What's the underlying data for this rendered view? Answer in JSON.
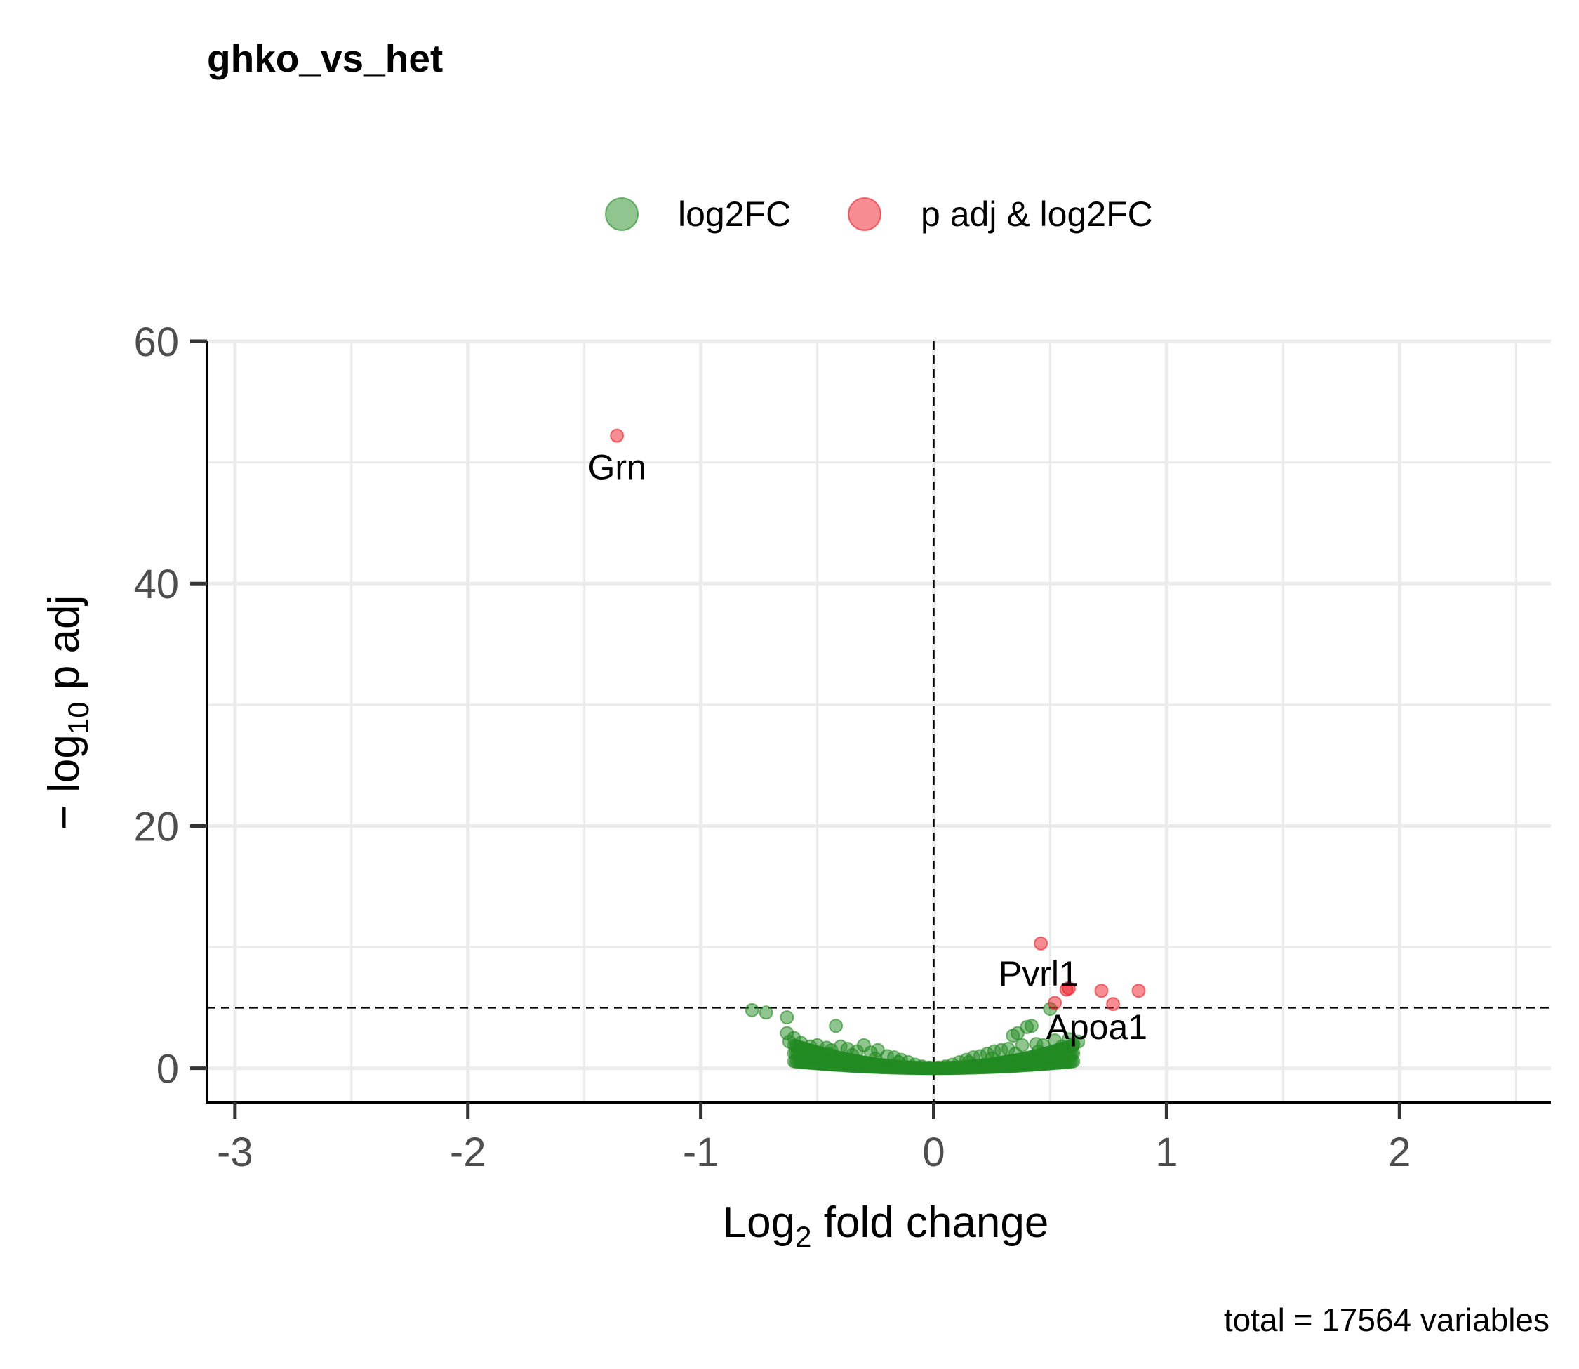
{
  "chart_data": {
    "type": "scatter",
    "title": "ghko_vs_het",
    "xlabel": {
      "prefix": "Log",
      "sub": "2",
      "suffix": " fold change"
    },
    "ylabel": {
      "prefix": "− log",
      "sub": "10",
      "suffix": " p adj"
    },
    "caption": "total = 17564 variables",
    "xlim": [
      -3.12,
      2.65
    ],
    "ylim": [
      -2.8,
      60
    ],
    "x_ticks": [
      -3,
      -2,
      -1,
      0,
      1,
      2
    ],
    "x_tick_labels": [
      "-3",
      "-2",
      "-1",
      "0",
      "1",
      "2"
    ],
    "y_ticks": [
      0,
      20,
      40,
      60
    ],
    "y_tick_labels": [
      "0",
      "20",
      "40",
      "60"
    ],
    "grid": true,
    "legend_position": "top",
    "cutoffs": {
      "x": 0,
      "y": 5
    },
    "colors": {
      "log2FC": "#228b22",
      "p adj & log2FC": "#ee1c25"
    },
    "legend": [
      {
        "name": "log2FC",
        "color": "#228b22"
      },
      {
        "name": "p adj & log2FC",
        "color": "#ee1c25"
      }
    ],
    "series": [
      {
        "name": "p adj & log2FC",
        "points": [
          [
            -1.36,
            52.2
          ],
          [
            0.46,
            10.3
          ],
          [
            0.57,
            6.5
          ],
          [
            0.58,
            6.6
          ],
          [
            0.72,
            6.4
          ],
          [
            0.88,
            6.4
          ],
          [
            0.77,
            5.3
          ],
          [
            0.52,
            5.4
          ]
        ]
      },
      {
        "name": "log2FC",
        "points": [
          [
            -0.78,
            4.8
          ],
          [
            -0.72,
            4.6
          ],
          [
            -0.63,
            4.2
          ],
          [
            -0.42,
            3.5
          ],
          [
            -0.63,
            2.9
          ],
          [
            -0.6,
            2.5
          ],
          [
            -0.57,
            2.1
          ],
          [
            -0.53,
            1.8
          ],
          [
            -0.5,
            1.9
          ],
          [
            -0.46,
            1.7
          ],
          [
            -0.44,
            1.5
          ],
          [
            -0.4,
            1.8
          ],
          [
            -0.37,
            1.6
          ],
          [
            -0.33,
            1.4
          ],
          [
            -0.3,
            1.9
          ],
          [
            -0.27,
            1.3
          ],
          [
            -0.24,
            1.5
          ],
          [
            -0.2,
            1.0
          ],
          [
            -0.17,
            0.9
          ],
          [
            -0.14,
            0.7
          ],
          [
            -0.11,
            0.5
          ],
          [
            -0.08,
            0.3
          ],
          [
            -0.05,
            0.15
          ],
          [
            -0.02,
            0.05
          ],
          [
            0.02,
            0.05
          ],
          [
            0.05,
            0.15
          ],
          [
            0.08,
            0.3
          ],
          [
            0.11,
            0.5
          ],
          [
            0.14,
            0.7
          ],
          [
            0.17,
            0.9
          ],
          [
            0.2,
            1.0
          ],
          [
            0.23,
            1.2
          ],
          [
            0.26,
            1.4
          ],
          [
            0.29,
            1.5
          ],
          [
            0.32,
            1.6
          ],
          [
            0.34,
            2.7
          ],
          [
            0.36,
            2.9
          ],
          [
            0.38,
            1.9
          ],
          [
            0.4,
            3.4
          ],
          [
            0.42,
            3.5
          ],
          [
            0.44,
            2.0
          ],
          [
            0.47,
            1.9
          ],
          [
            0.5,
            4.9
          ],
          [
            0.52,
            2.3
          ],
          [
            0.55,
            1.8
          ],
          [
            0.58,
            2.4
          ],
          [
            0.62,
            2.2
          ],
          [
            -0.56,
            1.5
          ],
          [
            -0.45,
            1.2
          ],
          [
            -0.35,
            1.1
          ],
          [
            -0.25,
            0.8
          ],
          [
            -0.15,
            0.5
          ],
          [
            0.15,
            0.5
          ],
          [
            0.25,
            0.8
          ],
          [
            0.35,
            1.2
          ],
          [
            0.45,
            1.4
          ],
          [
            0.55,
            1.6
          ],
          [
            -0.62,
            2.2
          ],
          [
            0.6,
            2.0
          ]
        ]
      }
    ],
    "annotations": [
      {
        "text": "Grn",
        "x": -1.36,
        "y": 49.6
      },
      {
        "text": "Pvrl1",
        "x": 0.45,
        "y": 7.8
      },
      {
        "text": "Apoa1",
        "x": 0.7,
        "y": 3.4
      }
    ]
  }
}
